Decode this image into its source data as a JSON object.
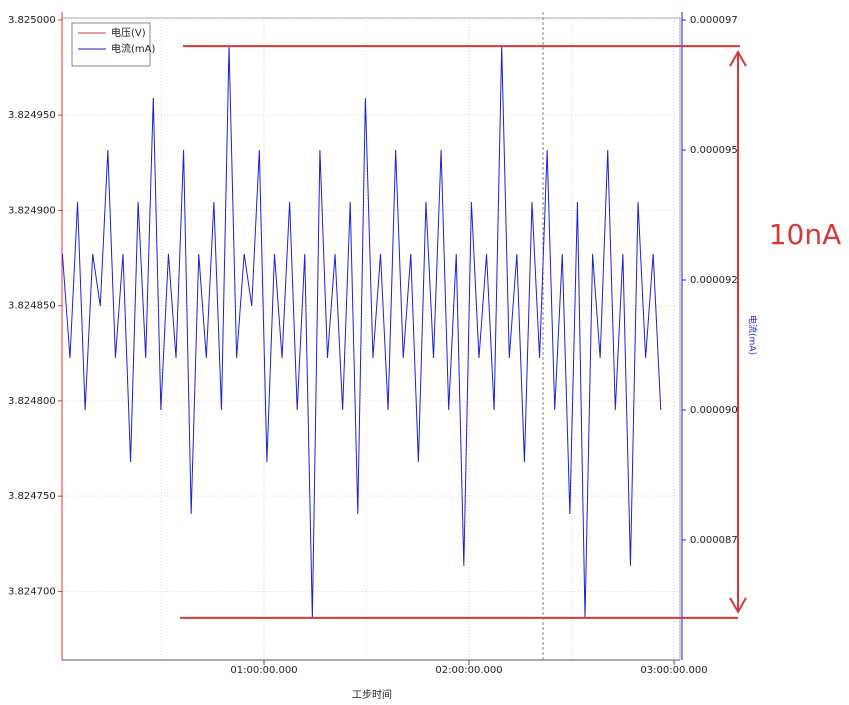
{
  "chart_data": {
    "type": "line",
    "x_label": "工步时间",
    "y2_label": "电流(mA)",
    "x": [
      60,
      193,
      326,
      459,
      592,
      725,
      858,
      991,
      1124,
      1257,
      1390,
      1523,
      1656,
      1789,
      1922,
      2055,
      2188,
      2321,
      2454,
      2587,
      2720,
      2853,
      2986,
      3119,
      3252,
      3385,
      3518,
      3651,
      3784,
      3917,
      4050,
      4183,
      4316,
      4449,
      4582,
      4715,
      4848,
      4981,
      5114,
      5247,
      5380,
      5513,
      5646,
      5779,
      5912,
      6045,
      6178,
      6311,
      6444,
      6577,
      6710,
      6843,
      6976,
      7109,
      7242,
      7375,
      7508,
      7641,
      7774,
      7907,
      8040,
      8173,
      8306,
      8439,
      8572,
      8705,
      8838,
      8971,
      9104,
      9237,
      9370,
      9503,
      9636,
      9769,
      9902,
      10035,
      10168,
      10301,
      10434,
      10567
    ],
    "series": [
      {
        "name": "电压(V)",
        "color": "#d9383a",
        "axis": "y",
        "values": [
          null,
          null,
          null,
          null,
          null,
          null,
          null,
          null,
          null,
          null,
          null,
          null,
          null,
          null,
          null,
          null,
          null,
          null,
          null,
          null,
          null,
          null,
          null,
          null,
          null,
          null,
          null,
          null,
          null,
          null,
          null,
          null,
          null,
          null,
          null,
          null,
          null,
          null,
          null,
          null,
          null,
          null,
          null,
          null,
          null,
          null,
          null,
          null,
          null,
          null,
          null,
          null,
          null,
          null,
          null,
          null,
          null,
          null,
          null,
          null,
          null,
          null,
          null,
          null,
          null,
          null,
          null,
          null,
          null,
          null,
          null,
          null,
          null,
          null,
          null,
          null,
          null,
          null,
          null,
          null
        ]
      },
      {
        "name": "电流(mA)",
        "color": "#1f1fd6",
        "axis": "y2",
        "values": [
          9.25e-05,
          9.05e-05,
          9.35e-05,
          8.95e-05,
          9.25e-05,
          9.15e-05,
          9.45e-05,
          9.05e-05,
          9.25e-05,
          8.85e-05,
          9.35e-05,
          9.05e-05,
          9.55e-05,
          8.95e-05,
          9.25e-05,
          9.05e-05,
          9.45e-05,
          8.75e-05,
          9.25e-05,
          9.05e-05,
          9.35e-05,
          8.95e-05,
          9.65e-05,
          9.05e-05,
          9.25e-05,
          9.15e-05,
          9.45e-05,
          8.85e-05,
          9.25e-05,
          9.05e-05,
          9.35e-05,
          8.95e-05,
          9.25e-05,
          8.55e-05,
          9.45e-05,
          9.05e-05,
          9.25e-05,
          8.95e-05,
          9.35e-05,
          8.75e-05,
          9.55e-05,
          9.05e-05,
          9.25e-05,
          8.95e-05,
          9.45e-05,
          9.05e-05,
          9.25e-05,
          8.85e-05,
          9.35e-05,
          9.05e-05,
          9.45e-05,
          8.95e-05,
          9.25e-05,
          8.65e-05,
          9.35e-05,
          9.05e-05,
          9.25e-05,
          8.95e-05,
          9.65e-05,
          9.05e-05,
          9.25e-05,
          8.85e-05,
          9.35e-05,
          9.05e-05,
          9.45e-05,
          8.95e-05,
          9.25e-05,
          8.75e-05,
          9.35e-05,
          8.55e-05,
          9.25e-05,
          9.05e-05,
          9.45e-05,
          8.95e-05,
          9.25e-05,
          8.65e-05,
          9.35e-05,
          9.05e-05,
          9.25e-05,
          8.95e-05
        ]
      }
    ],
    "xlim": [
      53,
      10905
    ],
    "xticks": [
      {
        "value": 3600,
        "label": "01:00:00.000"
      },
      {
        "value": 7200,
        "label": "02:00:00.000"
      },
      {
        "value": 10800,
        "label": "03:00:00.000"
      }
    ],
    "xminor": [
      1800,
      5400,
      9000
    ],
    "ylim": [
      3.824664,
      3.825001
    ],
    "yticks": [
      {
        "value": 3.8247,
        "label": "3.824700"
      },
      {
        "value": 3.82475,
        "label": "3.824750"
      },
      {
        "value": 3.8248,
        "label": "3.824800"
      },
      {
        "value": 3.82485,
        "label": "3.824850"
      },
      {
        "value": 3.8249,
        "label": "3.824900"
      },
      {
        "value": 3.82495,
        "label": "3.824950"
      },
      {
        "value": 3.825,
        "label": "3.825000"
      }
    ],
    "y2lim": [
      8.469e-05,
      9.704e-05
    ],
    "y2ticks": [
      {
        "value": 8.7e-05,
        "label": "0.000087"
      },
      {
        "value": 8.95e-05,
        "label": "0.000090"
      },
      {
        "value": 9.2e-05,
        "label": "0.000092"
      },
      {
        "value": 9.45e-05,
        "label": "0.000095"
      },
      {
        "value": 9.7e-05,
        "label": "0.000097"
      }
    ],
    "cursor_x": 8500,
    "grid": true,
    "legend": "upper left",
    "annotation": {
      "text": "10nA",
      "color": "#d9383a",
      "y2_top": 9.65e-05,
      "y2_bottom": 8.55e-05
    }
  }
}
